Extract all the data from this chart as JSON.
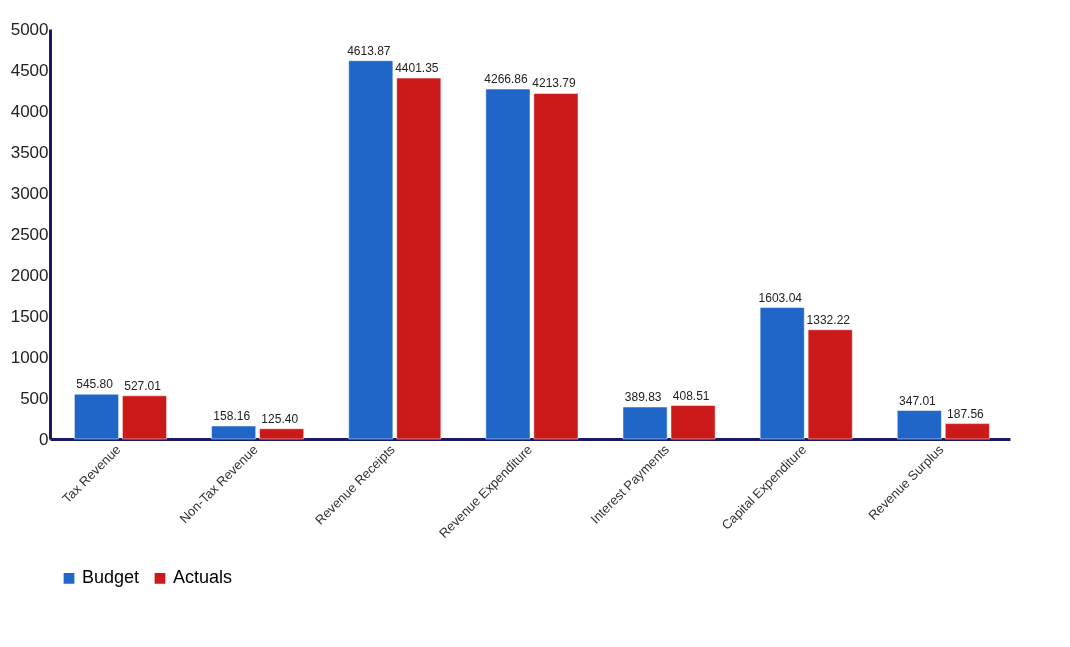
{
  "chart_data": {
    "type": "bar",
    "categories": [
      "Tax Revenue",
      "Non-Tax Revenue",
      "Revenue Receipts",
      "Revenue Expenditure",
      "Interest Payments",
      "Capital Expenditure",
      "Revenue Surplus"
    ],
    "series": [
      {
        "name": "Budget",
        "color": "#1f66c8",
        "values": [
          545.8,
          158.16,
          4613.87,
          4266.86,
          389.83,
          1603.04,
          347.01
        ],
        "value_labels": [
          "545.80",
          "158.16",
          "4613.87",
          "4266.86",
          "389.83",
          "1603.04",
          "347.01"
        ]
      },
      {
        "name": "Actuals",
        "color": "#cc1a1a",
        "values": [
          527.01,
          125.4,
          4401.35,
          4213.79,
          408.51,
          1332.22,
          187.56
        ],
        "value_labels": [
          "527.01",
          "125.40",
          "4401.35",
          "4213.79",
          "408.51",
          "1332.22",
          "187.56"
        ]
      }
    ],
    "ylim": [
      0,
      5000
    ],
    "yticks": [
      0,
      500,
      1000,
      1500,
      2000,
      2500,
      3000,
      3500,
      4000,
      4500,
      5000
    ],
    "grid": false,
    "legend": "bottom"
  }
}
